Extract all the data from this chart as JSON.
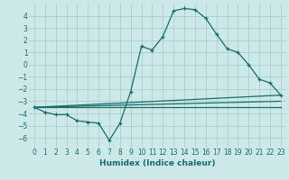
{
  "xlabel": "Humidex (Indice chaleur)",
  "bg_color": "#cce8e8",
  "line_color": "#1a6b6b",
  "grid_color": "#aacfcf",
  "xlim": [
    -0.5,
    23.5
  ],
  "ylim": [
    -6.8,
    5.0
  ],
  "yticks": [
    -6,
    -5,
    -4,
    -3,
    -2,
    -1,
    0,
    1,
    2,
    3,
    4
  ],
  "xticks": [
    0,
    1,
    2,
    3,
    4,
    5,
    6,
    7,
    8,
    9,
    10,
    11,
    12,
    13,
    14,
    15,
    16,
    17,
    18,
    19,
    20,
    21,
    22,
    23
  ],
  "series1_x": [
    0,
    1,
    2,
    3,
    4,
    5,
    6,
    7,
    8,
    9,
    10,
    11,
    12,
    13,
    14,
    15,
    16,
    17,
    18,
    19,
    20,
    21,
    22,
    23
  ],
  "series1_y": [
    -3.5,
    -3.9,
    -4.1,
    -4.1,
    -4.6,
    -4.7,
    -4.8,
    -6.2,
    -4.8,
    -2.2,
    1.5,
    1.2,
    2.3,
    4.4,
    4.6,
    4.5,
    3.8,
    2.5,
    1.3,
    1.0,
    0.0,
    -1.2,
    -1.5,
    -2.5
  ],
  "line2_x": [
    0,
    23
  ],
  "line2_y": [
    -3.5,
    -2.5
  ],
  "line3_x": [
    0,
    23
  ],
  "line3_y": [
    -3.5,
    -3.0
  ],
  "line4_x": [
    0,
    23
  ],
  "line4_y": [
    -3.5,
    -3.5
  ]
}
